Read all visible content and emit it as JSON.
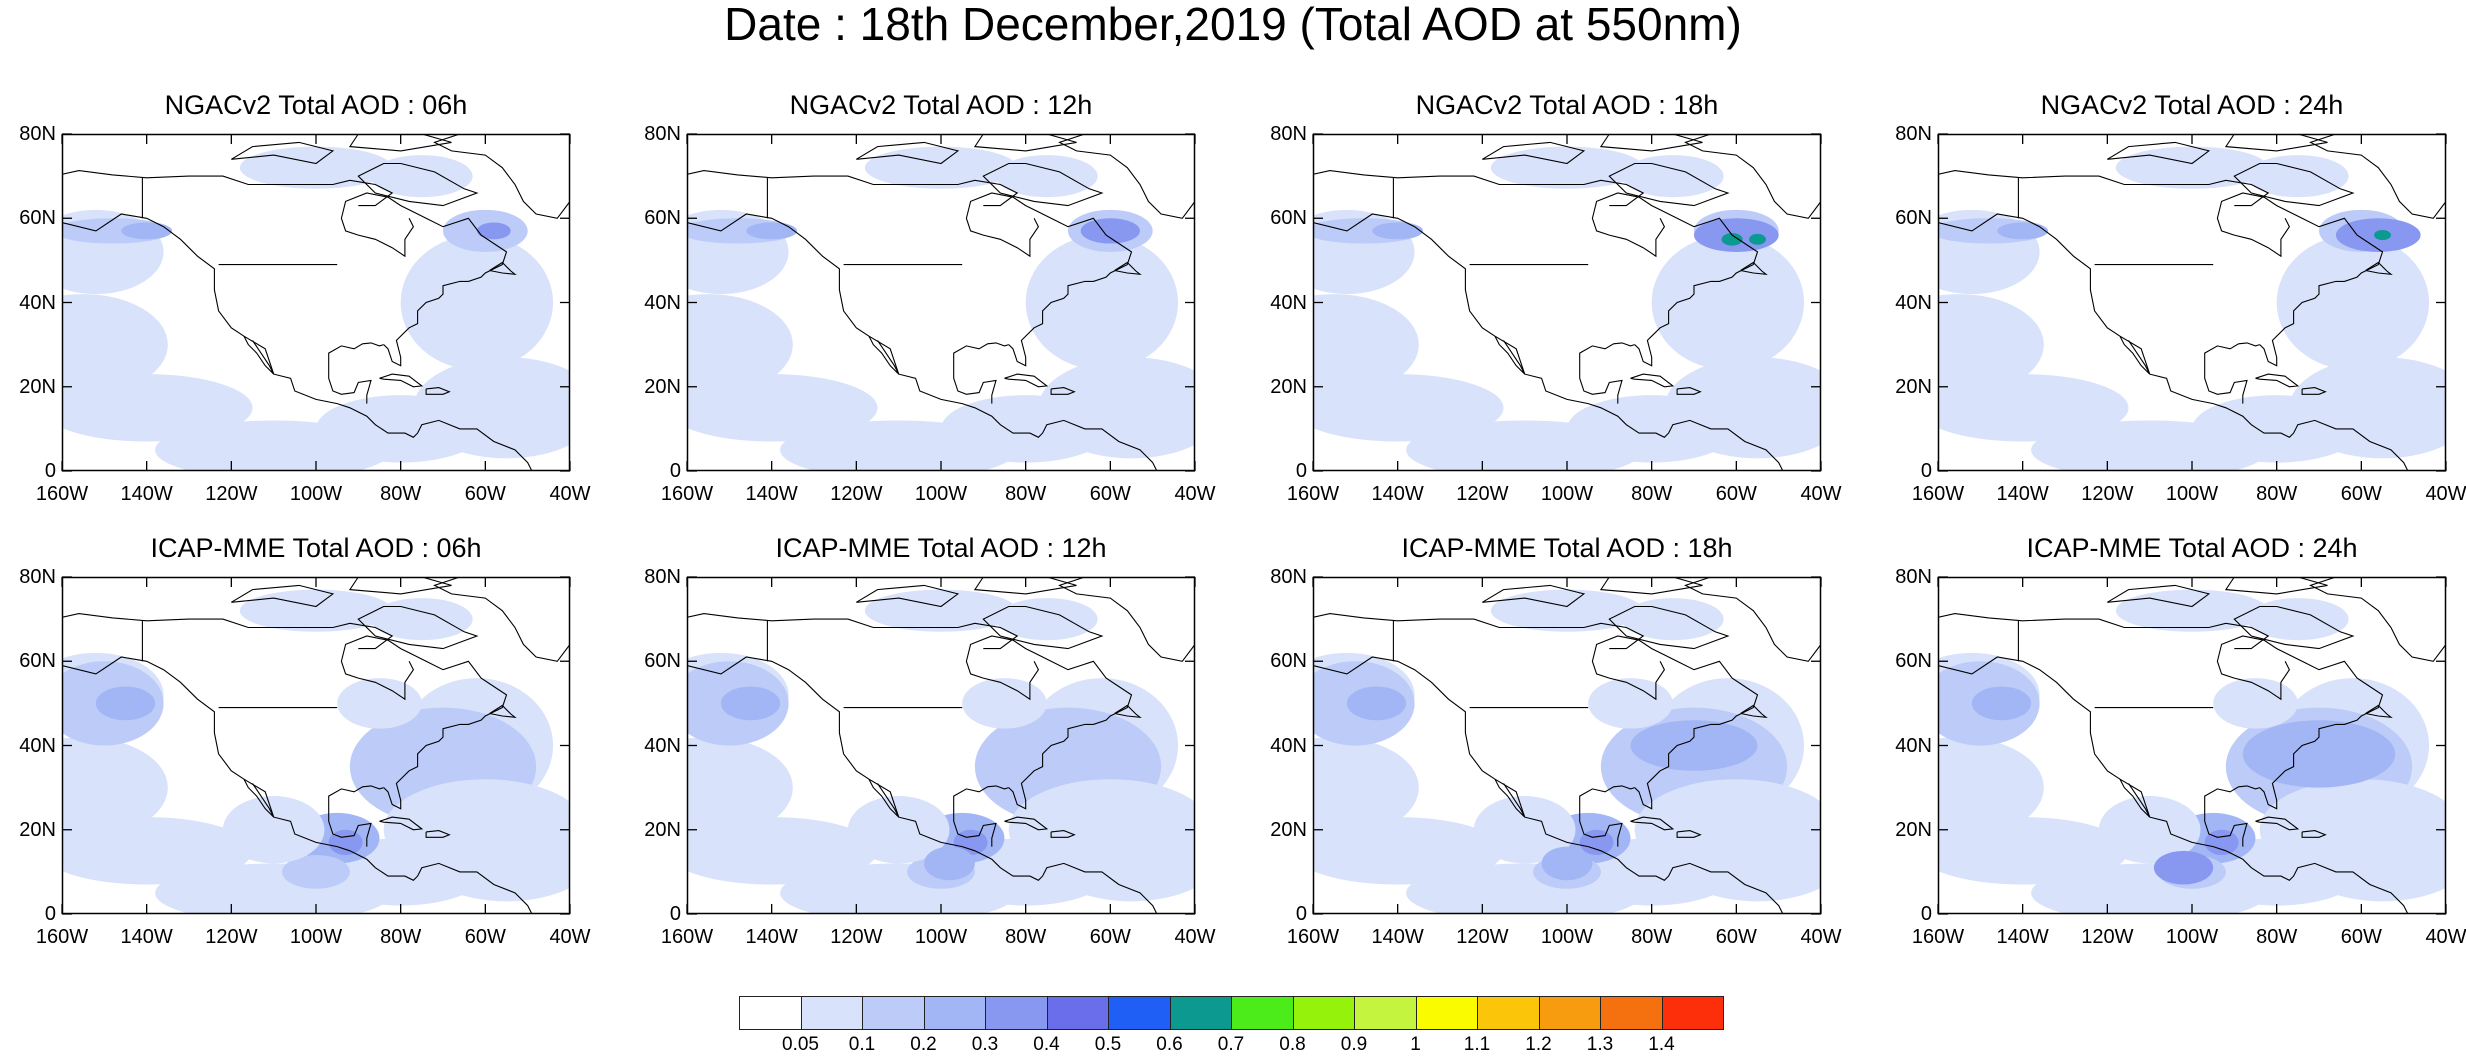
{
  "title": "Date : 18th December,2019 (Total AOD at 550nm)",
  "lon_labels": [
    "160W",
    "140W",
    "120W",
    "100W",
    "80W",
    "60W",
    "40W"
  ],
  "lat_labels": [
    "80N",
    "60N",
    "40N",
    "20N",
    "0"
  ],
  "panels": [
    {
      "title": "NGACv2 Total AOD : 06h",
      "model": "NGACv2",
      "hour": "06h"
    },
    {
      "title": "NGACv2 Total AOD : 12h",
      "model": "NGACv2",
      "hour": "12h"
    },
    {
      "title": "NGACv2 Total AOD : 18h",
      "model": "NGACv2",
      "hour": "18h"
    },
    {
      "title": "NGACv2 Total AOD : 24h",
      "model": "NGACv2",
      "hour": "24h"
    },
    {
      "title": "ICAP-MME Total AOD : 06h",
      "model": "ICAP-MME",
      "hour": "06h"
    },
    {
      "title": "ICAP-MME Total AOD : 12h",
      "model": "ICAP-MME",
      "hour": "12h"
    },
    {
      "title": "ICAP-MME Total AOD : 18h",
      "model": "ICAP-MME",
      "hour": "18h"
    },
    {
      "title": "ICAP-MME Total AOD : 24h",
      "model": "ICAP-MME",
      "hour": "24h"
    }
  ],
  "colorbar": {
    "labels": [
      "0.05",
      "0.1",
      "0.2",
      "0.3",
      "0.4",
      "0.5",
      "0.6",
      "0.7",
      "0.8",
      "0.9",
      "1",
      "1.1",
      "1.2",
      "1.3",
      "1.4"
    ],
    "colors": [
      "#ffffff",
      "#d9e2fb",
      "#bccbf7",
      "#a2b6f5",
      "#8898f1",
      "#6a6eeb",
      "#1f5ff5",
      "#0c9a90",
      "#4bec19",
      "#94f20b",
      "#c5f43e",
      "#fbfb00",
      "#fbc60a",
      "#f79b0f",
      "#f5710f",
      "#fd2f0b"
    ]
  },
  "field_colors": {
    "coast": "#000000",
    "low": "#d9e2fb",
    "mid": "#bccbf7",
    "high": "#a2b6f5",
    "higher": "#8898f1",
    "peak": "#6a6eeb",
    "teal": "#0c9a90"
  }
}
